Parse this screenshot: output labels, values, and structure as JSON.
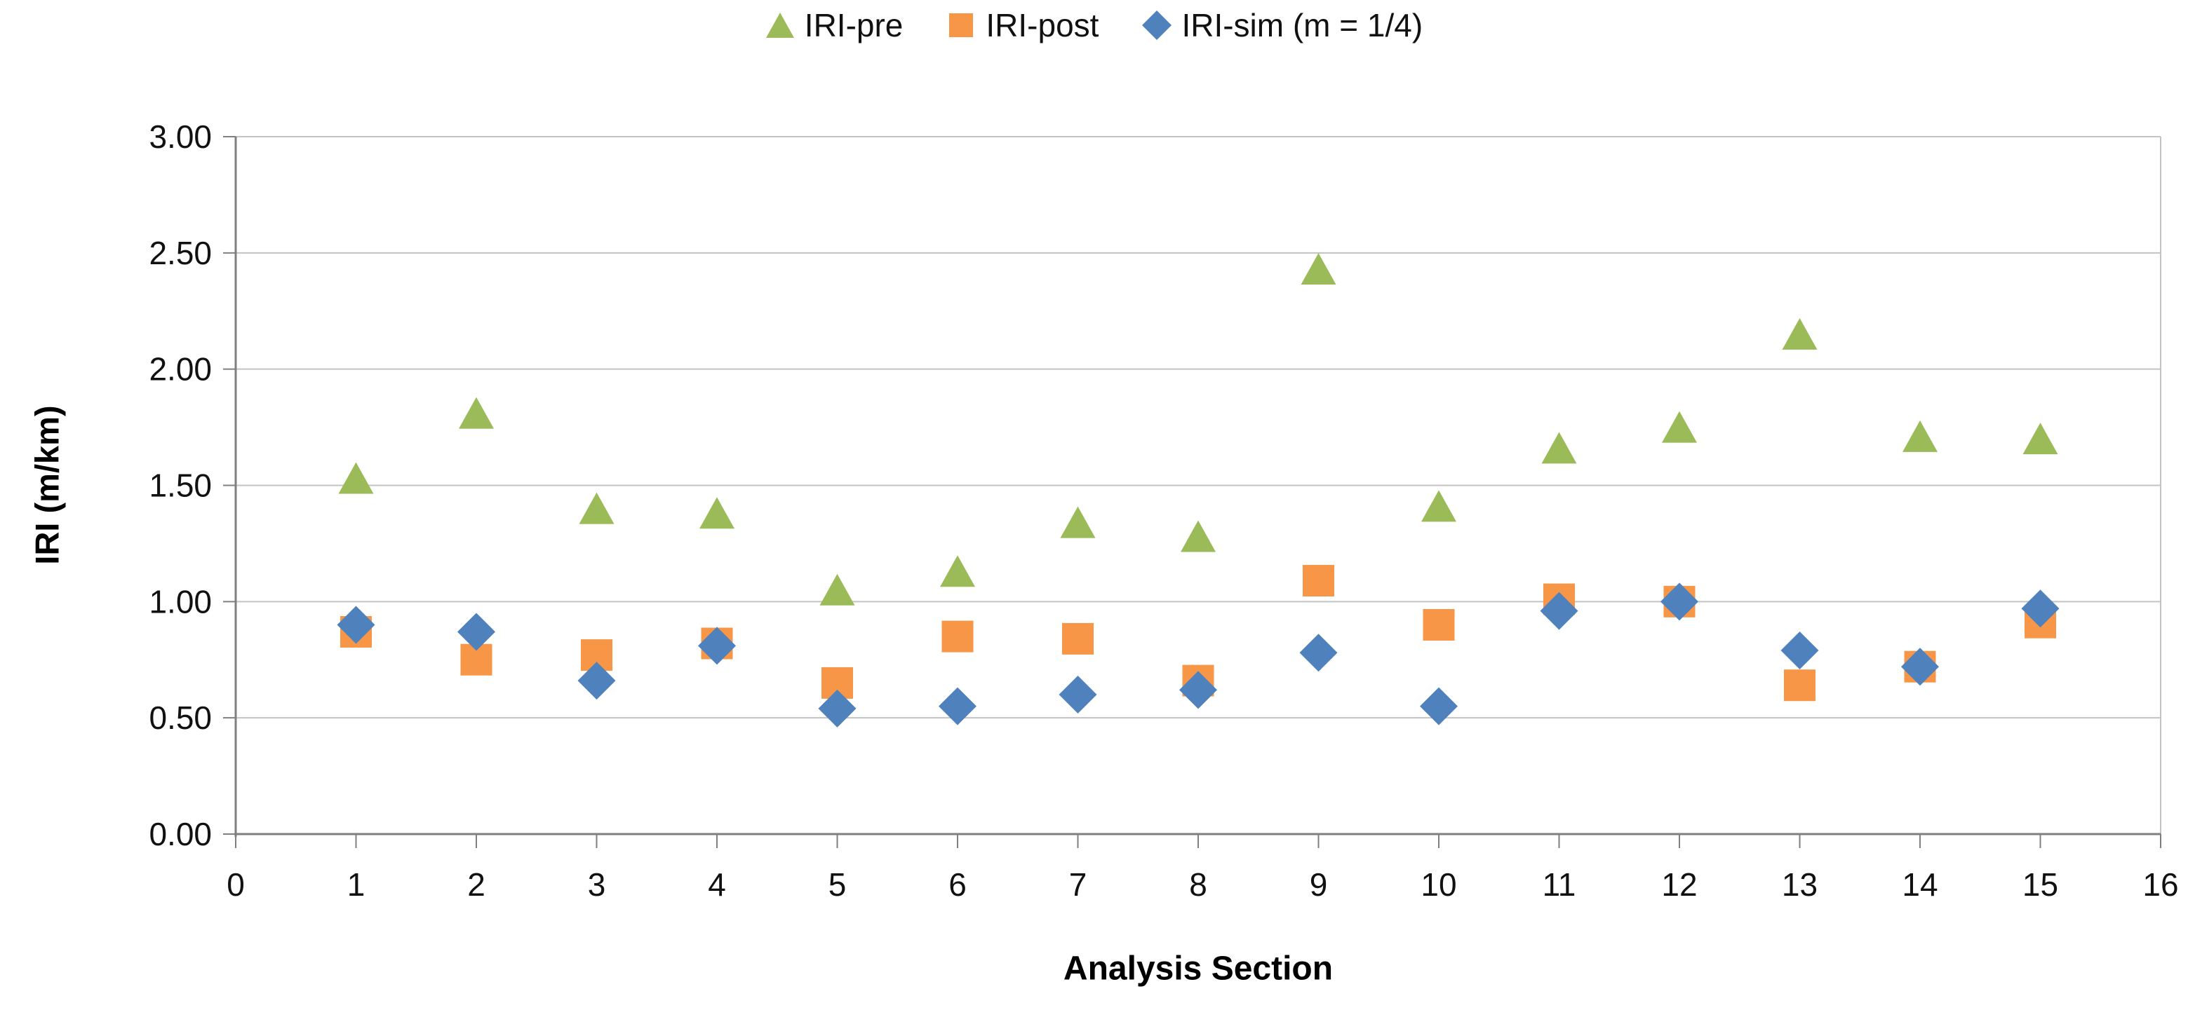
{
  "legend": {
    "items": [
      {
        "label": "IRI-pre",
        "marker": "triangle",
        "color": "#9BBB59"
      },
      {
        "label": "IRI-post",
        "marker": "square",
        "color": "#F79646"
      },
      {
        "label": "IRI-sim (m = 1/4)",
        "marker": "diamond",
        "color": "#4F81BD"
      }
    ]
  },
  "chart_data": {
    "type": "scatter",
    "title": "",
    "xlabel": "Analysis Section",
    "ylabel": "IRI (m/km)",
    "xlim": [
      0,
      16
    ],
    "ylim": [
      0.0,
      3.0
    ],
    "grid": "horizontal",
    "legend_position": "top-center",
    "x_ticks": [
      {
        "value": 0,
        "label": "0"
      },
      {
        "value": 1,
        "label": "1"
      },
      {
        "value": 2,
        "label": "2"
      },
      {
        "value": 3,
        "label": "3"
      },
      {
        "value": 4,
        "label": "4"
      },
      {
        "value": 5,
        "label": "5"
      },
      {
        "value": 6,
        "label": "6"
      },
      {
        "value": 7,
        "label": "7"
      },
      {
        "value": 8,
        "label": "8"
      },
      {
        "value": 9,
        "label": "9"
      },
      {
        "value": 10,
        "label": "10"
      },
      {
        "value": 11,
        "label": "11"
      },
      {
        "value": 12,
        "label": "12"
      },
      {
        "value": 13,
        "label": "13"
      },
      {
        "value": 14,
        "label": "14"
      },
      {
        "value": 15,
        "label": "15"
      },
      {
        "value": 16,
        "label": "16"
      }
    ],
    "y_ticks": [
      {
        "value": 0.0,
        "label": "0.00"
      },
      {
        "value": 0.5,
        "label": "0.50"
      },
      {
        "value": 1.0,
        "label": "1.00"
      },
      {
        "value": 1.5,
        "label": "1.50"
      },
      {
        "value": 2.0,
        "label": "2.00"
      },
      {
        "value": 2.5,
        "label": "2.50"
      },
      {
        "value": 3.0,
        "label": "3.00"
      }
    ],
    "x": [
      1,
      2,
      3,
      4,
      5,
      6,
      7,
      8,
      9,
      10,
      11,
      12,
      13,
      14,
      15
    ],
    "series": [
      {
        "name": "IRI-pre",
        "marker": "triangle",
        "color": "#9BBB59",
        "values": [
          1.53,
          1.81,
          1.4,
          1.38,
          1.05,
          1.13,
          1.34,
          1.28,
          2.43,
          1.41,
          1.66,
          1.75,
          2.15,
          1.71,
          1.7
        ]
      },
      {
        "name": "IRI-post",
        "marker": "square",
        "color": "#F79646",
        "values": [
          0.87,
          0.75,
          0.77,
          0.82,
          0.65,
          0.85,
          0.84,
          0.66,
          1.09,
          0.9,
          1.01,
          1.0,
          0.64,
          0.72,
          0.91
        ]
      },
      {
        "name": "IRI-sim (m = 1/4)",
        "marker": "diamond",
        "color": "#4F81BD",
        "values": [
          0.9,
          0.87,
          0.66,
          0.81,
          0.54,
          0.55,
          0.6,
          0.62,
          0.78,
          0.55,
          0.96,
          1.0,
          0.79,
          0.72,
          0.97
        ]
      }
    ],
    "colors": {
      "gridline": "#C3C3C3",
      "axis": "#7F7F7F",
      "tick_label": "#111111",
      "background": "#FFFFFF"
    }
  }
}
